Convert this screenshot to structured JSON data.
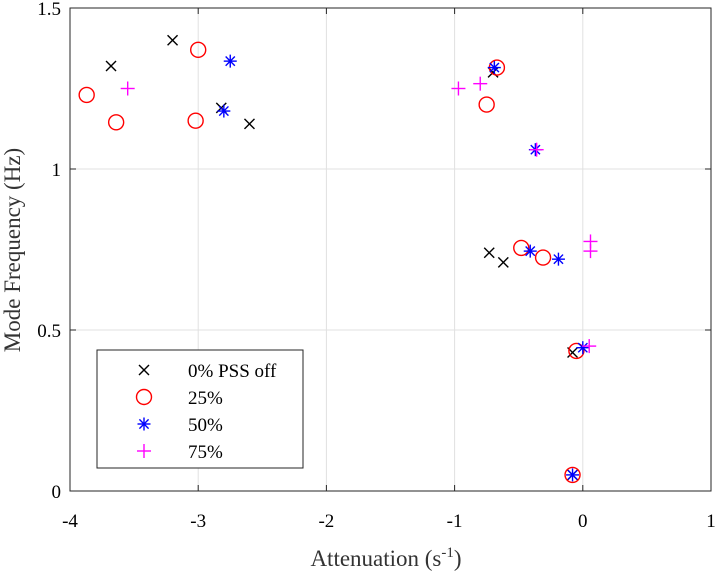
{
  "chart_data": {
    "type": "scatter",
    "title": "",
    "xlabel": "Attenuation (s",
    "xlabel_sup": "-1",
    "xlabel_end": ")",
    "ylabel": "Mode Frequency (Hz)",
    "xlim": [
      -4,
      1
    ],
    "ylim": [
      0,
      1.5
    ],
    "xticks": [
      -4,
      -3,
      -2,
      -1,
      0,
      1
    ],
    "yticks": [
      0,
      0.5,
      1,
      1.5
    ],
    "xtick_labels": [
      "-4",
      "-3",
      "-2",
      "-1",
      "0",
      "1"
    ],
    "ytick_labels": [
      "0",
      "0.5",
      "1",
      "1.5"
    ],
    "grid": true,
    "legend_position": "bottom-left",
    "series": [
      {
        "name": "0% PSS off",
        "marker": "x",
        "color": "#000000",
        "points": [
          [
            -3.68,
            1.32
          ],
          [
            -3.2,
            1.4
          ],
          [
            -2.82,
            1.19
          ],
          [
            -2.6,
            1.14
          ],
          [
            -0.7,
            1.3
          ],
          [
            -0.73,
            0.74
          ],
          [
            -0.62,
            0.71
          ],
          [
            -0.08,
            0.43
          ],
          [
            -0.08,
            0.05
          ]
        ]
      },
      {
        "name": "25%",
        "marker": "o",
        "color": "#ff0000",
        "points": [
          [
            -3.87,
            1.23
          ],
          [
            -3.64,
            1.145
          ],
          [
            -3.0,
            1.37
          ],
          [
            -3.02,
            1.15
          ],
          [
            -0.67,
            1.315
          ],
          [
            -0.75,
            1.2
          ],
          [
            -0.48,
            0.755
          ],
          [
            -0.31,
            0.725
          ],
          [
            -0.05,
            0.435
          ],
          [
            -0.08,
            0.05
          ]
        ]
      },
      {
        "name": "50%",
        "marker": "*",
        "color": "#0000ff",
        "points": [
          [
            -2.75,
            1.335
          ],
          [
            -2.8,
            1.18
          ],
          [
            -0.69,
            1.315
          ],
          [
            -0.37,
            1.06
          ],
          [
            -0.41,
            0.745
          ],
          [
            -0.19,
            0.72
          ],
          [
            0.0,
            0.445
          ],
          [
            -0.08,
            0.05
          ]
        ]
      },
      {
        "name": "75%",
        "marker": "+",
        "color": "#ff00ff",
        "points": [
          [
            -3.55,
            1.25
          ],
          [
            -0.97,
            1.25
          ],
          [
            -0.8,
            1.265
          ],
          [
            -0.36,
            1.06
          ],
          [
            0.06,
            0.775
          ],
          [
            0.06,
            0.745
          ],
          [
            0.05,
            0.45
          ]
        ]
      }
    ]
  }
}
